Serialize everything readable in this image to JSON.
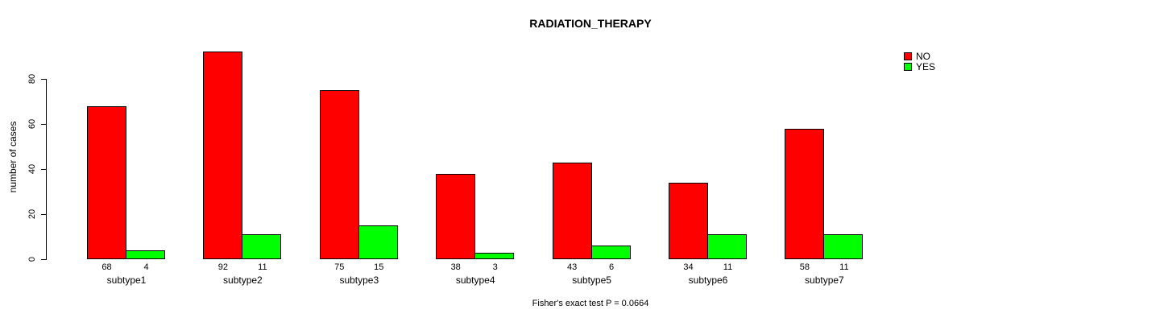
{
  "figure": {
    "background": "#ffffff"
  },
  "chart_data": {
    "type": "bar",
    "title": "RADIATION_THERAPY",
    "xlabel": "",
    "ylabel": "number of cases",
    "categories": [
      "subtype1",
      "subtype2",
      "subtype3",
      "subtype4",
      "subtype5",
      "subtype6",
      "subtype7"
    ],
    "series": [
      {
        "name": "NO",
        "color": "#ff0000",
        "values": [
          68,
          92,
          75,
          38,
          43,
          34,
          58
        ]
      },
      {
        "name": "YES",
        "color": "#00ff00",
        "values": [
          4,
          11,
          15,
          3,
          6,
          11,
          11
        ]
      }
    ],
    "value_labels_shown": true,
    "yticks": [
      0,
      20,
      40,
      60,
      80
    ],
    "ylim": [
      0,
      92
    ],
    "grid": false,
    "legend_position": "top-right",
    "annotation": "Fisher's exact test P = 0.0664"
  }
}
